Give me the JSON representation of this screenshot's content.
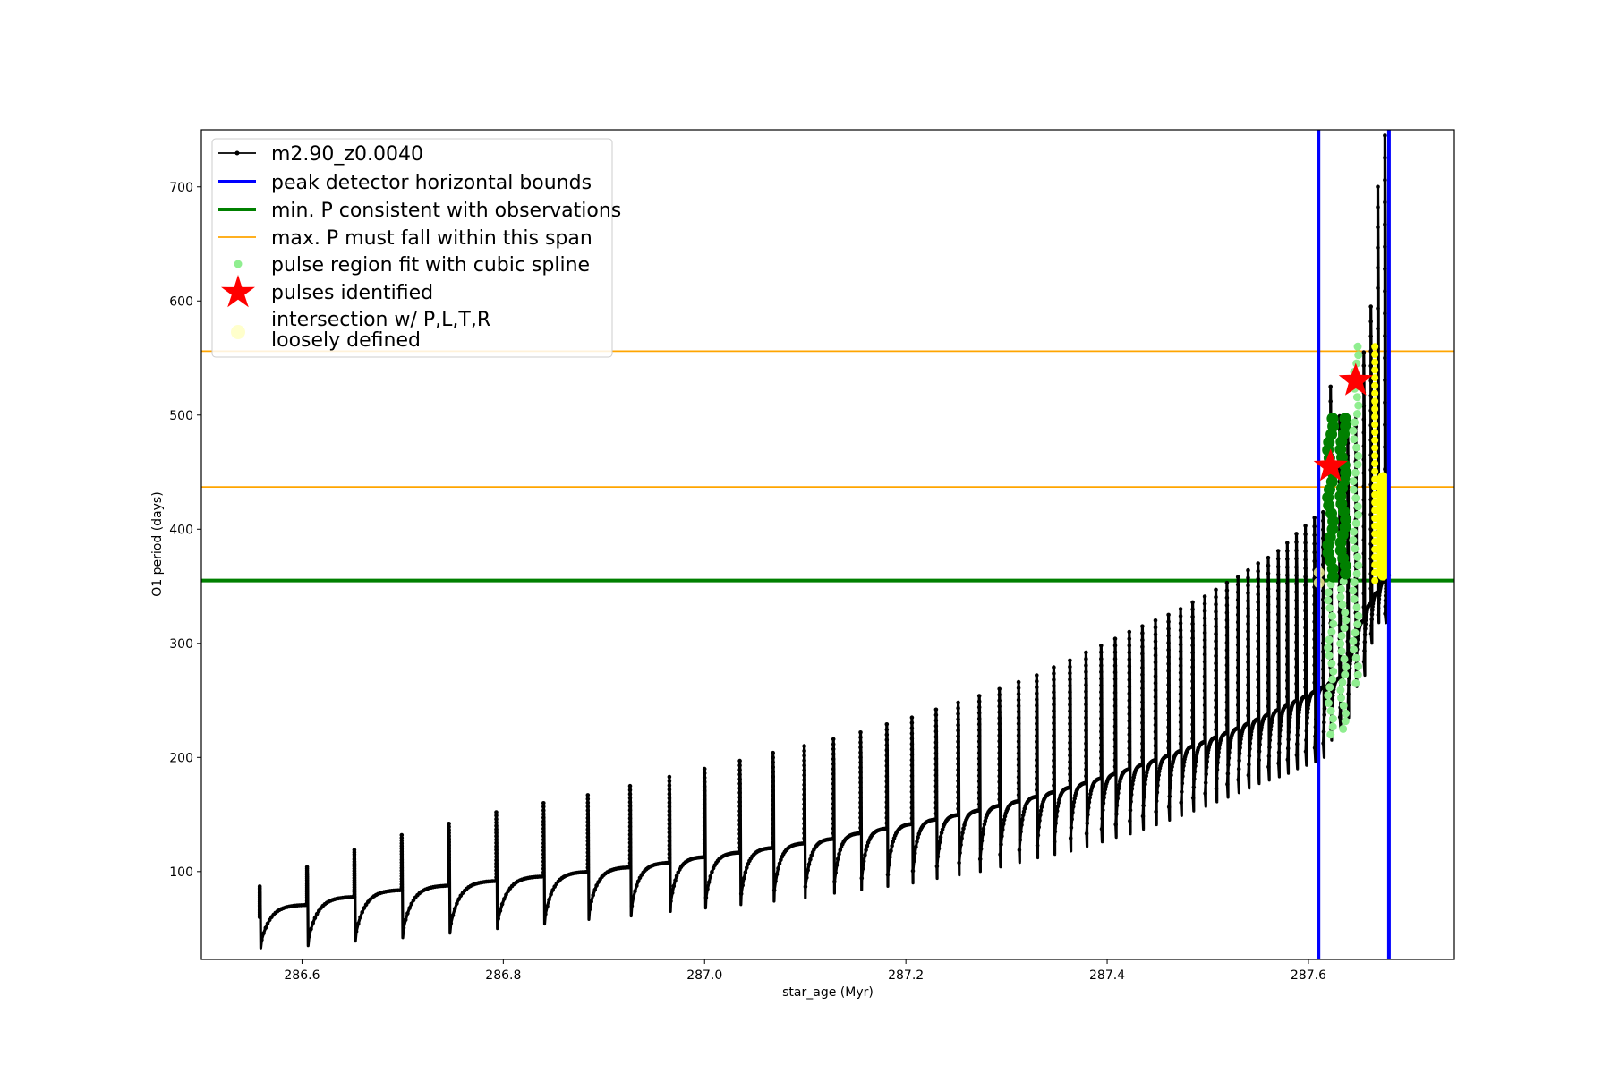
{
  "chart_data": {
    "type": "line",
    "xlabel": "star_age (Myr)",
    "ylabel": "O1 period (days)",
    "xlim": [
      286.5,
      287.745
    ],
    "ylim": [
      23,
      750
    ],
    "xticks": [
      286.6,
      286.8,
      287.0,
      287.2,
      287.4,
      287.6
    ],
    "xtick_labels": [
      "286.6",
      "286.8",
      "287.0",
      "287.2",
      "287.4",
      "287.6"
    ],
    "yticks": [
      100,
      200,
      300,
      400,
      500,
      600,
      700
    ],
    "ytick_labels": [
      "100",
      "200",
      "300",
      "400",
      "500",
      "600",
      "700"
    ],
    "grid": false,
    "legend_position": "top-left",
    "colors": {
      "series": "#000000",
      "bounds": "#0000ff",
      "min_p": "#008000",
      "max_p": "#ffa500",
      "spline": "#90ee90",
      "pulses": "#ff0000",
      "intersection": "#ffff00"
    },
    "series": [
      {
        "name": "m2.90_z0.0040",
        "pulse_times": [
          286.558,
          286.605,
          286.652,
          286.699,
          286.746,
          286.793,
          286.84,
          286.884,
          286.926,
          286.965,
          287.0,
          287.035,
          287.068,
          287.099,
          287.128,
          287.155,
          287.181,
          287.206,
          287.23,
          287.252,
          287.273,
          287.293,
          287.312,
          287.33,
          287.347,
          287.363,
          287.379,
          287.394,
          287.408,
          287.422,
          287.435,
          287.448,
          287.461,
          287.473,
          287.485,
          287.497,
          287.508,
          287.519,
          287.53,
          287.54,
          287.55,
          287.56,
          287.57,
          287.579,
          287.588,
          287.597,
          287.606,
          287.6145,
          287.622,
          287.631,
          287.639,
          287.647,
          287.655,
          287.662,
          287.669,
          287.676
        ],
        "pulse_peaks": [
          87,
          104,
          119,
          132,
          142,
          152,
          160,
          167,
          175,
          183,
          190,
          197,
          204,
          210,
          216,
          222,
          229,
          235,
          242,
          248,
          254,
          260,
          266,
          272,
          279,
          285,
          292,
          298,
          304,
          310,
          315,
          320,
          325,
          330,
          336,
          341,
          347,
          353,
          358,
          364,
          370,
          375,
          381,
          388,
          396,
          403,
          410,
          415,
          525,
          499,
          497,
          500,
          555,
          595,
          700,
          745
        ],
        "pulse_minima": [
          33,
          35,
          39,
          42,
          46,
          50,
          54,
          58,
          61,
          65,
          68,
          71,
          74,
          77,
          81,
          84,
          87,
          90,
          94,
          97,
          100,
          104,
          108,
          112,
          115,
          118,
          122,
          126,
          130,
          133,
          137,
          141,
          145,
          149,
          153,
          157,
          161,
          165,
          169,
          173,
          177,
          180,
          183,
          186,
          190,
          193,
          196,
          200,
          215,
          225,
          235,
          262,
          272,
          300,
          318,
          318
        ],
        "plateau_values": [
          71,
          78,
          84,
          88,
          92,
          96,
          100,
          104,
          108,
          113,
          117,
          121,
          125,
          129,
          134,
          138,
          142,
          146,
          150,
          154,
          158,
          162,
          166,
          170,
          174,
          178,
          182,
          186,
          190,
          194,
          198,
          202,
          206,
          210,
          214,
          218,
          222,
          226,
          230,
          234,
          238,
          242,
          246,
          250,
          254,
          258,
          262,
          266,
          270,
          280,
          296,
          320,
          335,
          345,
          355,
          360
        ]
      }
    ],
    "peak_detector_horizontal_bounds": {
      "label": "peak detector horizontal bounds",
      "x": [
        287.61,
        287.68
      ]
    },
    "min_p_consistent": {
      "label": "min. P consistent with observations",
      "y": 355
    },
    "max_p_span": {
      "label": "max. P must fall within this span",
      "y": [
        437,
        556
      ]
    },
    "spline_fit": {
      "label": "pulse region fit with cubic spline",
      "x": [
        287.622,
        287.6345,
        287.647
      ],
      "y_low": [
        220,
        225,
        265
      ],
      "y_high": [
        497,
        497,
        560
      ]
    },
    "pulses_identified": {
      "label": "pulses identified",
      "points": [
        {
          "x": 287.622,
          "y": 455
        },
        {
          "x": 287.647,
          "y": 530
        }
      ]
    },
    "intersection": {
      "label": "intersection w/ P,L,T,R\nloosely defined",
      "label_lines": [
        "intersection w/ P,L,T,R",
        "loosely defined"
      ],
      "band_x": [
        287.6675,
        287.6805
      ],
      "band_y": [
        355,
        450
      ],
      "column_x": 287.666,
      "column_y": [
        355,
        560
      ],
      "blobs": [
        {
          "x": 287.6105,
          "y": 362
        },
        {
          "x": 287.6105,
          "y": 353
        }
      ]
    }
  }
}
